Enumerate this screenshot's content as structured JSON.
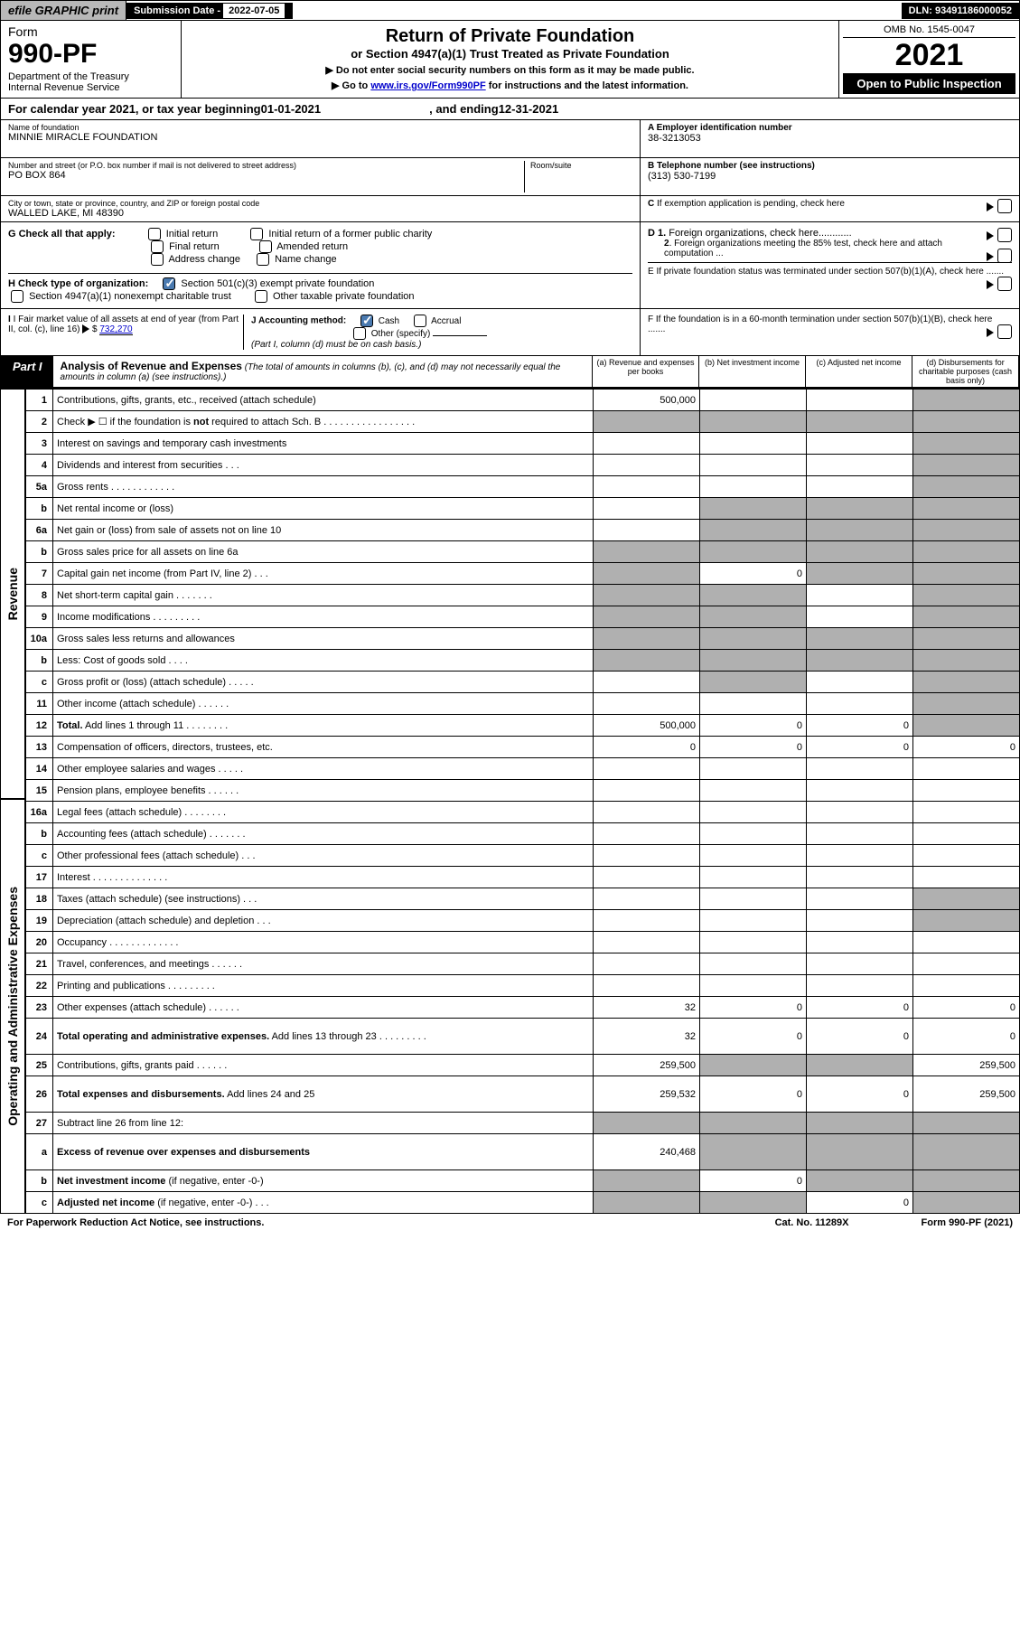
{
  "top": {
    "efile": "efile GRAPHIC print",
    "sub_label": "Submission Date - ",
    "sub_date": "2022-07-05",
    "dln": "DLN: 93491186000052"
  },
  "header": {
    "form": "Form",
    "num": "990-PF",
    "dept": "Department of the Treasury\nInternal Revenue Service",
    "title": "Return of Private Foundation",
    "subtitle": "or Section 4947(a)(1) Trust Treated as Private Foundation",
    "note1": "▶ Do not enter social security numbers on this form as it may be made public.",
    "note2_pre": "▶ Go to ",
    "note2_link": "www.irs.gov/Form990PF",
    "note2_post": " for instructions and the latest information.",
    "omb": "OMB No. 1545-0047",
    "year": "2021",
    "open": "Open to Public Inspection"
  },
  "calyear": {
    "pre": "For calendar year 2021, or tax year beginning ",
    "begin": "01-01-2021",
    "mid": " , and ending ",
    "end": "12-31-2021"
  },
  "info": {
    "name_label": "Name of foundation",
    "name": "MINNIE MIRACLE FOUNDATION",
    "addr_label": "Number and street (or P.O. box number if mail is not delivered to street address)",
    "addr": "PO BOX 864",
    "room_label": "Room/suite",
    "city_label": "City or town, state or province, country, and ZIP or foreign postal code",
    "city": "WALLED LAKE, MI  48390",
    "a_label": "A Employer identification number",
    "a_val": "38-3213053",
    "b_label": "B Telephone number (see instructions)",
    "b_val": "(313) 530-7199",
    "c_label": "C If exemption application is pending, check here"
  },
  "g": {
    "label": "G Check all that apply:",
    "opts": [
      "Initial return",
      "Final return",
      "Address change",
      "Initial return of a former public charity",
      "Amended return",
      "Name change"
    ]
  },
  "h": {
    "label": "H Check type of organization:",
    "opt1": "Section 501(c)(3) exempt private foundation",
    "opt2": "Section 4947(a)(1) nonexempt charitable trust",
    "opt3": "Other taxable private foundation"
  },
  "d": {
    "d1": "D 1. Foreign organizations, check here............",
    "d2": "2. Foreign organizations meeting the 85% test, check here and attach computation ...",
    "e": "E  If private foundation status was terminated under section 507(b)(1)(A), check here .......",
    "f": "F  If the foundation is in a 60-month termination under section 507(b)(1)(B), check here ......."
  },
  "i": {
    "label": "I Fair market value of all assets at end of year (from Part II, col. (c), line 16)",
    "val": "732,270"
  },
  "j": {
    "label": "J Accounting method:",
    "cash": "Cash",
    "accrual": "Accrual",
    "other": "Other (specify)",
    "note": "(Part I, column (d) must be on cash basis.)"
  },
  "part1": {
    "label": "Part I",
    "title": "Analysis of Revenue and Expenses",
    "desc": " (The total of amounts in columns (b), (c), and (d) may not necessarily equal the amounts in column (a) (see instructions).)",
    "cols": {
      "a": "(a)   Revenue and expenses per books",
      "b": "(b)   Net investment income",
      "c": "(c)   Adjusted net income",
      "d": "(d)  Disbursements for charitable purposes (cash basis only)"
    }
  },
  "sections": {
    "revenue": "Revenue",
    "expenses": "Operating and Administrative Expenses"
  },
  "rows": [
    {
      "n": "1",
      "l": "Contributions, gifts, grants, etc., received (attach schedule)",
      "a": "500,000",
      "d_sh": true
    },
    {
      "n": "2",
      "l": "Check ▶ ☐ if the foundation is <b>not</b> required to attach Sch. B   .  .  .  .  .  .  .  .  .  .  .  .  .  .  .  .  .",
      "all_sh": true
    },
    {
      "n": "3",
      "l": "Interest on savings and temporary cash investments",
      "d_sh": true
    },
    {
      "n": "4",
      "l": "Dividends and interest from securities     .   .   .",
      "d_sh": true
    },
    {
      "n": "5a",
      "l": "Gross rents    .   .   .   .   .   .   .   .   .   .   .   .",
      "d_sh": true
    },
    {
      "n": "b",
      "l": "Net rental income or (loss)  ",
      "inset": true,
      "bcd_sh": true
    },
    {
      "n": "6a",
      "l": "Net gain or (loss) from sale of assets not on line 10",
      "bcd_sh": true
    },
    {
      "n": "b",
      "l": "Gross sales price for all assets on line 6a ",
      "inset": true,
      "all_sh": true
    },
    {
      "n": "7",
      "l": "Capital gain net income (from Part IV, line 2)   .   .   .",
      "b": "0",
      "acd_sh": true
    },
    {
      "n": "8",
      "l": "Net short-term capital gain   .   .   .   .   .   .   .",
      "abd_sh": true
    },
    {
      "n": "9",
      "l": "Income modifications  .   .   .   .   .   .   .   .   .",
      "abd_sh": true
    },
    {
      "n": "10a",
      "l": "Gross sales less returns and allowances",
      "inset": true,
      "all_sh": true
    },
    {
      "n": "b",
      "l": "Less: Cost of goods sold    .   .   .   .",
      "inset": true,
      "all_sh": true
    },
    {
      "n": "c",
      "l": "Gross profit or (loss) (attach schedule)    .   .   .   .   .",
      "bd_sh": true
    },
    {
      "n": "11",
      "l": "Other income (attach schedule)    .   .   .   .   .   .",
      "d_sh": true
    },
    {
      "n": "12",
      "l": "<b>Total.</b> Add lines 1 through 11   .   .   .   .   .   .   .   .",
      "a": "500,000",
      "b": "0",
      "c": "0",
      "d_sh": true,
      "bold": true
    },
    {
      "n": "13",
      "l": "Compensation of officers, directors, trustees, etc.",
      "a": "0",
      "b": "0",
      "c": "0",
      "d": "0"
    },
    {
      "n": "14",
      "l": "Other employee salaries and wages   .   .   .   .   ."
    },
    {
      "n": "15",
      "l": "Pension plans, employee benefits  .   .   .   .   .   ."
    },
    {
      "n": "16a",
      "l": "Legal fees (attach schedule)  .   .   .   .   .   .   .   ."
    },
    {
      "n": "b",
      "l": "Accounting fees (attach schedule)  .   .   .   .   .   .   ."
    },
    {
      "n": "c",
      "l": "Other professional fees (attach schedule)    .   .   ."
    },
    {
      "n": "17",
      "l": "Interest  .   .   .   .   .   .   .   .   .   .   .   .   .   ."
    },
    {
      "n": "18",
      "l": "Taxes (attach schedule) (see instructions)     .   .   .",
      "d_sh": true
    },
    {
      "n": "19",
      "l": "Depreciation (attach schedule) and depletion    .   .   .",
      "d_sh": true
    },
    {
      "n": "20",
      "l": "Occupancy  .   .   .   .   .   .   .   .   .   .   .   .   ."
    },
    {
      "n": "21",
      "l": "Travel, conferences, and meetings  .   .   .   .   .   ."
    },
    {
      "n": "22",
      "l": "Printing and publications  .   .   .   .   .   .   .   .   ."
    },
    {
      "n": "23",
      "l": "Other expenses (attach schedule)  .   .   .   .   .   .",
      "a": "32",
      "b": "0",
      "c": "0",
      "d": "0"
    },
    {
      "n": "24",
      "l": "<b>Total operating and administrative expenses.</b> Add lines 13 through 23   .   .   .   .   .   .   .   .   .",
      "a": "32",
      "b": "0",
      "c": "0",
      "d": "0",
      "tall": true
    },
    {
      "n": "25",
      "l": "Contributions, gifts, grants paid    .   .   .   .   .   .",
      "a": "259,500",
      "d": "259,500",
      "bc_sh": true
    },
    {
      "n": "26",
      "l": "<b>Total expenses and disbursements.</b> Add lines 24 and 25",
      "a": "259,532",
      "b": "0",
      "c": "0",
      "d": "259,500",
      "tall": true
    },
    {
      "n": "27",
      "l": "Subtract line 26 from line 12:",
      "all_sh": true
    },
    {
      "n": "a",
      "l": "<b>Excess of revenue over expenses and disbursements</b>",
      "a": "240,468",
      "bcd_sh": true,
      "tall": true
    },
    {
      "n": "b",
      "l": "<b>Net investment income</b> (if negative, enter -0-)",
      "b": "0",
      "acd_sh": true
    },
    {
      "n": "c",
      "l": "<b>Adjusted net income</b> (if negative, enter -0-)   .   .   .",
      "c": "0",
      "abd_sh": true
    }
  ],
  "footer": {
    "left": "For Paperwork Reduction Act Notice, see instructions.",
    "mid": "Cat. No. 11289X",
    "right": "Form 990-PF (2021)"
  }
}
